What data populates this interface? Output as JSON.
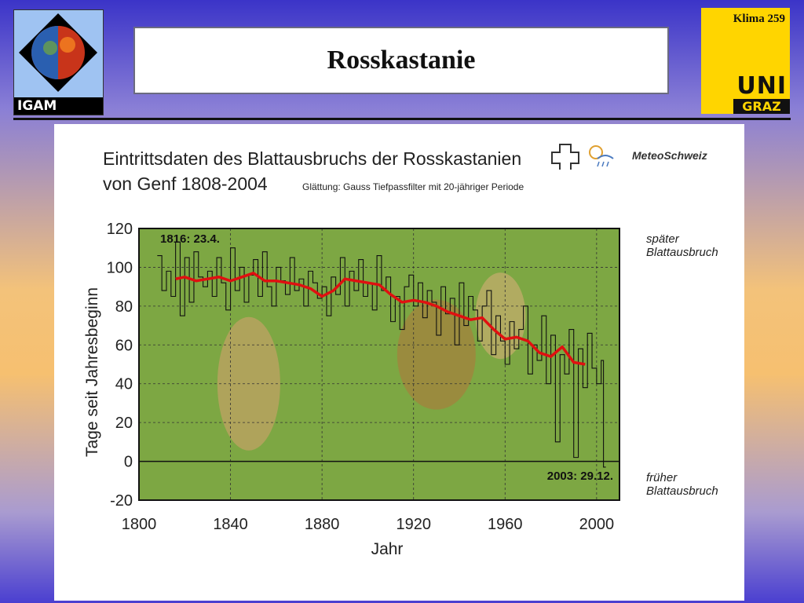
{
  "header": {
    "logo_left": "IGAM",
    "title": "Rosskastanie",
    "slide_label": "Klima  259",
    "logo_right_top": "UNI",
    "logo_right_bottom": "GRAZ"
  },
  "chart_data": {
    "type": "line",
    "title_line1": "Eintrittsdaten des Blattausbruchs der Rosskastanien",
    "title_line2": "von Genf 1808-2004",
    "note": "Glättung: Gauss Tiefpassfilter mit 20-jähriger Periode",
    "source": "MeteoSchweiz",
    "xlabel": "Jahr",
    "ylabel": "Tage seit Jahresbeginn",
    "xlim": [
      1800,
      2010
    ],
    "ylim": [
      -20,
      120
    ],
    "xticks": [
      "1800",
      "1840",
      "1880",
      "1920",
      "1960",
      "2000"
    ],
    "yticks": [
      "120",
      "100",
      "80",
      "60",
      "40",
      "20",
      "0",
      "-20"
    ],
    "annotation_first": "1816: 23.4.",
    "annotation_last": "2003: 29.12.",
    "label_late_1": "später",
    "label_late_2": "Blattausbruch",
    "label_early_1": "früher",
    "label_early_2": "Blattausbruch",
    "grid": true,
    "colors": {
      "raw": "#111111",
      "smooth": "#e01010",
      "background": "#7da743"
    },
    "series": [
      {
        "values_note": "annual",
        "x": [
          1808,
          1810,
          1812,
          1814,
          1816,
          1818,
          1820,
          1822,
          1824,
          1826,
          1828,
          1830,
          1832,
          1834,
          1836,
          1838,
          1840,
          1842,
          1844,
          1846,
          1848,
          1850,
          1852,
          1854,
          1856,
          1858,
          1860,
          1862,
          1864,
          1866,
          1868,
          1870,
          1872,
          1874,
          1876,
          1878,
          1880,
          1882,
          1884,
          1886,
          1888,
          1890,
          1892,
          1894,
          1896,
          1898,
          1900,
          1902,
          1904,
          1906,
          1908,
          1910,
          1912,
          1914,
          1916,
          1918,
          1920,
          1922,
          1924,
          1926,
          1928,
          1930,
          1932,
          1934,
          1936,
          1938,
          1940,
          1942,
          1944,
          1946,
          1948,
          1950,
          1952,
          1954,
          1956,
          1958,
          1960,
          1962,
          1964,
          1966,
          1968,
          1970,
          1972,
          1974,
          1976,
          1978,
          1980,
          1982,
          1984,
          1986,
          1988,
          1990,
          1992,
          1994,
          1996,
          1998,
          2000,
          2002,
          2003
        ],
        "y": [
          106,
          88,
          98,
          85,
          113,
          75,
          105,
          82,
          108,
          95,
          90,
          98,
          85,
          105,
          92,
          78,
          110,
          88,
          100,
          82,
          96,
          104,
          85,
          108,
          90,
          80,
          100,
          93,
          86,
          105,
          88,
          94,
          80,
          98,
          92,
          84,
          90,
          75,
          95,
          86,
          105,
          80,
          98,
          88,
          104,
          85,
          92,
          78,
          106,
          88,
          95,
          72,
          85,
          68,
          90,
          96,
          80,
          92,
          74,
          88,
          82,
          65,
          90,
          76,
          84,
          60,
          92,
          70,
          85,
          78,
          62,
          80,
          88,
          55,
          75,
          62,
          50,
          72,
          58,
          68,
          80,
          45,
          60,
          52,
          75,
          40,
          65,
          10,
          55,
          45,
          68,
          2,
          58,
          38,
          66,
          48,
          40,
          52,
          -3
        ]
      },
      {
        "values_note": "smoothed",
        "x": [
          1816,
          1820,
          1825,
          1830,
          1835,
          1840,
          1845,
          1850,
          1855,
          1860,
          1865,
          1870,
          1875,
          1880,
          1885,
          1890,
          1895,
          1900,
          1905,
          1910,
          1915,
          1920,
          1925,
          1930,
          1935,
          1940,
          1945,
          1950,
          1955,
          1960,
          1965,
          1970,
          1975,
          1980,
          1985,
          1990,
          1995
        ],
        "y": [
          94,
          95,
          93,
          94,
          95,
          93,
          95,
          97,
          93,
          93,
          92,
          91,
          89,
          85,
          88,
          94,
          93,
          92,
          91,
          86,
          82,
          83,
          82,
          80,
          77,
          75,
          73,
          74,
          68,
          63,
          64,
          62,
          56,
          54,
          59,
          51,
          50
        ]
      }
    ]
  }
}
